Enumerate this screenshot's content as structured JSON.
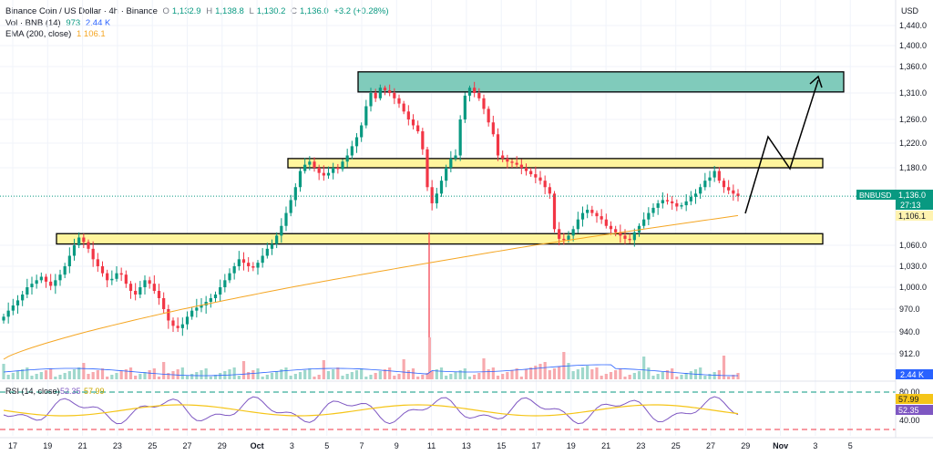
{
  "legend": {
    "line1_title": "Binance Coin / US Dollar · 4h · Binance",
    "o_label": "O",
    "o_val": "1,132.9",
    "h_label": "H",
    "h_val": "1,138.8",
    "l_label": "L",
    "l_val": "1,130.2",
    "c_label": "C",
    "c_val": "1,136.0",
    "change": "+3.2 (+0.28%)",
    "vol_label": "Vol · BNB (14)",
    "vol_v1": "973",
    "vol_v2": "2.44 K",
    "ema_label": "EMA (200, close)",
    "ema_val": "1,106.1",
    "rsi_label": "RSI (14, close)",
    "rsi_v1": "52.35",
    "rsi_v2": "57.99"
  },
  "currency": "USD",
  "colors": {
    "up": "#089981",
    "down": "#f23645",
    "ema": "#f5a623",
    "volume_ma": "#2962ff",
    "rsi": "#7e57c2",
    "rsi_ma": "#f5c518",
    "zone_green": "#80cbbb",
    "zone_yellow": "#fff59d",
    "price_tag": "#089981",
    "ema_tag": "#fff3b0",
    "vol_tag": "#2962ff"
  },
  "price_tag": {
    "symbol": "BNBUSD",
    "price": "1,136.0",
    "countdown": "27:13"
  },
  "ema_tag": "1,106.1",
  "vol_tag": "2.44 K",
  "rsi_tags": {
    "rsi_ma": "57.99",
    "rsi": "52.35"
  },
  "chart_data": {
    "type": "candlestick",
    "title": "Binance Coin / US Dollar · 4h · Binance",
    "y_axis_ticks": [
      "1,440.0",
      "1,400.0",
      "1,360.0",
      "1,310.0",
      "1,260.0",
      "1,220.0",
      "1,180.0",
      "1,060.0",
      "1,030.0",
      "1,000.0",
      "970.0",
      "940.0",
      "912.0"
    ],
    "rsi_axis_ticks": [
      "80.00",
      "40.00"
    ],
    "x_axis_ticks": [
      "17",
      "19",
      "21",
      "23",
      "25",
      "27",
      "29",
      "Oct",
      "3",
      "5",
      "7",
      "9",
      "11",
      "13",
      "15",
      "17",
      "19",
      "21",
      "23",
      "25",
      "27",
      "29",
      "Nov",
      "3",
      "5"
    ],
    "ylim": [
      900,
      1450
    ],
    "close_series": [
      960,
      968,
      975,
      982,
      990,
      1000,
      1005,
      1010,
      1015,
      1008,
      1002,
      1010,
      1018,
      1030,
      1045,
      1060,
      1072,
      1065,
      1055,
      1040,
      1030,
      1020,
      1010,
      1012,
      1020,
      1018,
      1005,
      995,
      990,
      1000,
      1010,
      1005,
      995,
      985,
      970,
      955,
      948,
      945,
      950,
      960,
      968,
      972,
      975,
      980,
      985,
      990,
      1000,
      1010,
      1020,
      1030,
      1040,
      1035,
      1030,
      1028,
      1035,
      1045,
      1055,
      1062,
      1075,
      1090,
      1110,
      1130,
      1150,
      1175,
      1185,
      1190,
      1180,
      1172,
      1168,
      1172,
      1180,
      1178,
      1190,
      1200,
      1215,
      1230,
      1250,
      1285,
      1310,
      1300,
      1320,
      1315,
      1310,
      1300,
      1290,
      1275,
      1260,
      1250,
      1240,
      1210,
      1150,
      1125,
      1140,
      1160,
      1180,
      1195,
      1200,
      1260,
      1305,
      1320,
      1310,
      1300,
      1280,
      1255,
      1235,
      1200,
      1195,
      1190,
      1188,
      1185,
      1180,
      1175,
      1170,
      1165,
      1160,
      1150,
      1140,
      1085,
      1070,
      1068,
      1075,
      1085,
      1100,
      1110,
      1115,
      1110,
      1105,
      1100,
      1090,
      1085,
      1080,
      1075,
      1070,
      1068,
      1080,
      1090,
      1100,
      1110,
      1118,
      1125,
      1130,
      1128,
      1125,
      1120,
      1122,
      1128,
      1135,
      1140,
      1150,
      1160,
      1165,
      1175,
      1160,
      1150,
      1145,
      1140,
      1136
    ],
    "ema_200": [
      1106.1
    ],
    "zones": [
      {
        "color": "green",
        "low": 1312,
        "high": 1350
      },
      {
        "color": "yellow",
        "low": 1180,
        "high": 1195
      },
      {
        "color": "yellow",
        "low": 1062,
        "high": 1078
      }
    ],
    "projection": {
      "points": [
        [
          1130,
          0
        ],
        [
          1215,
          1
        ],
        [
          1180,
          2
        ],
        [
          1355,
          3
        ]
      ]
    },
    "rsi_levels": {
      "overbought": 80,
      "oversold": 40
    }
  }
}
